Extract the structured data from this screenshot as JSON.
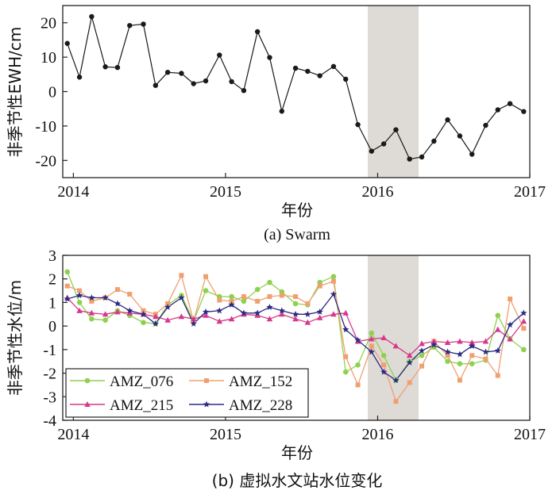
{
  "chart_data": [
    {
      "type": "line",
      "caption": "(a) Swarm",
      "title": "",
      "xlabel": "年份",
      "ylabel": "非季节性EWH/cm",
      "xlim": [
        2013.93,
        2017.0
      ],
      "ylim": [
        -25,
        25
      ],
      "xticks": [
        2014,
        2015,
        2016,
        2017
      ],
      "yticks": [
        20,
        10,
        0,
        -10,
        -20
      ],
      "shaded_range": [
        2015.92,
        2016.25
      ],
      "series": [
        {
          "name": "Swarm",
          "color": "#1a1a1a",
          "x": [
            2013.96,
            2014.04,
            2014.12,
            2014.21,
            2014.29,
            2014.37,
            2014.46,
            2014.54,
            2014.62,
            2014.71,
            2014.79,
            2014.87,
            2014.96,
            2015.04,
            2015.12,
            2015.21,
            2015.29,
            2015.37,
            2015.46,
            2015.54,
            2015.62,
            2015.71,
            2015.79,
            2015.87,
            2015.96,
            2016.04,
            2016.12,
            2016.21,
            2016.29,
            2016.37,
            2016.46,
            2016.54,
            2016.62,
            2016.71,
            2016.79,
            2016.87,
            2016.96
          ],
          "y": [
            14.0,
            4.2,
            21.8,
            7.2,
            7.0,
            19.2,
            19.6,
            1.8,
            5.6,
            5.3,
            2.3,
            3.1,
            10.6,
            2.9,
            0.3,
            17.4,
            9.9,
            -5.7,
            6.8,
            5.9,
            4.6,
            7.3,
            3.6,
            -9.6,
            -17.3,
            -15.2,
            -11.1,
            -19.6,
            -19.0,
            -14.4,
            -8.2,
            -12.9,
            -18.2,
            -9.8,
            -5.3,
            -3.5,
            -5.8
          ]
        }
      ]
    },
    {
      "type": "line",
      "caption": "(b) 虚拟水文站水位变化",
      "title": "",
      "xlabel": "年份",
      "ylabel": "非季节性水位/m",
      "xlim": [
        2013.93,
        2017.0
      ],
      "ylim": [
        -4,
        3
      ],
      "xticks": [
        2014,
        2015,
        2016,
        2017
      ],
      "yticks": [
        3,
        2,
        1,
        0,
        -1,
        -2,
        -3,
        -4
      ],
      "shaded_range": [
        2015.92,
        2016.25
      ],
      "legend": "bottom-left",
      "x": [
        2013.96,
        2014.04,
        2014.12,
        2014.21,
        2014.29,
        2014.37,
        2014.46,
        2014.54,
        2014.62,
        2014.71,
        2014.79,
        2014.87,
        2014.96,
        2015.04,
        2015.12,
        2015.21,
        2015.29,
        2015.37,
        2015.46,
        2015.54,
        2015.62,
        2015.71,
        2015.79,
        2015.87,
        2015.96,
        2016.04,
        2016.12,
        2016.21,
        2016.29,
        2016.37,
        2016.46,
        2016.54,
        2016.62,
        2016.71,
        2016.79,
        2016.87,
        2016.96
      ],
      "series": [
        {
          "name": "AMZ_076",
          "color": "#8fd14f",
          "marker": "circle",
          "values": [
            2.3,
            1.0,
            0.3,
            0.25,
            0.65,
            0.45,
            0.15,
            0.1,
            0.9,
            1.3,
            0.2,
            1.5,
            1.25,
            1.25,
            1.05,
            1.55,
            1.85,
            1.45,
            0.95,
            0.9,
            1.85,
            2.1,
            -1.95,
            -1.65,
            -0.3,
            -1.25,
            -2.3,
            -1.5,
            -1.25,
            -0.9,
            -1.5,
            -1.6,
            -1.6,
            -1.45,
            0.45,
            -0.55,
            -1.0
          ]
        },
        {
          "name": "AMZ_152",
          "color": "#f0a070",
          "marker": "square",
          "values": [
            1.7,
            1.5,
            1.05,
            1.2,
            1.55,
            1.35,
            0.65,
            0.5,
            0.95,
            2.15,
            0.2,
            2.1,
            1.1,
            1.05,
            1.25,
            1.05,
            1.25,
            1.3,
            1.25,
            0.95,
            1.7,
            1.9,
            -1.3,
            -2.5,
            -0.85,
            -1.65,
            -3.2,
            -2.4,
            -1.7,
            -0.65,
            -1.25,
            -2.3,
            -1.25,
            -1.4,
            -2.1,
            1.15,
            -0.1
          ]
        },
        {
          "name": "AMZ_215",
          "color": "#d6388a",
          "marker": "triangle",
          "values": [
            1.2,
            0.65,
            0.55,
            0.5,
            0.6,
            0.55,
            0.5,
            0.4,
            0.25,
            0.4,
            0.3,
            0.45,
            0.2,
            0.3,
            0.5,
            0.45,
            0.3,
            0.5,
            0.3,
            0.15,
            0.35,
            0.5,
            0.55,
            -0.65,
            -0.55,
            -0.5,
            -0.85,
            -1.25,
            -0.75,
            -0.65,
            -0.7,
            -0.65,
            -0.7,
            -0.65,
            -0.15,
            -0.55,
            0.2
          ]
        },
        {
          "name": "AMZ_228",
          "color": "#2a2a82",
          "marker": "star",
          "values": [
            1.15,
            1.3,
            1.2,
            1.2,
            0.95,
            0.65,
            0.5,
            0.1,
            0.8,
            1.2,
            0.1,
            0.6,
            0.65,
            0.9,
            0.55,
            0.55,
            0.8,
            0.65,
            0.5,
            0.5,
            0.6,
            1.35,
            -0.15,
            -0.6,
            -1.1,
            -1.95,
            -2.3,
            -1.55,
            -1.05,
            -0.8,
            -1.1,
            -1.2,
            -0.85,
            -1.1,
            -1.05,
            0.05,
            0.55
          ]
        }
      ]
    }
  ]
}
